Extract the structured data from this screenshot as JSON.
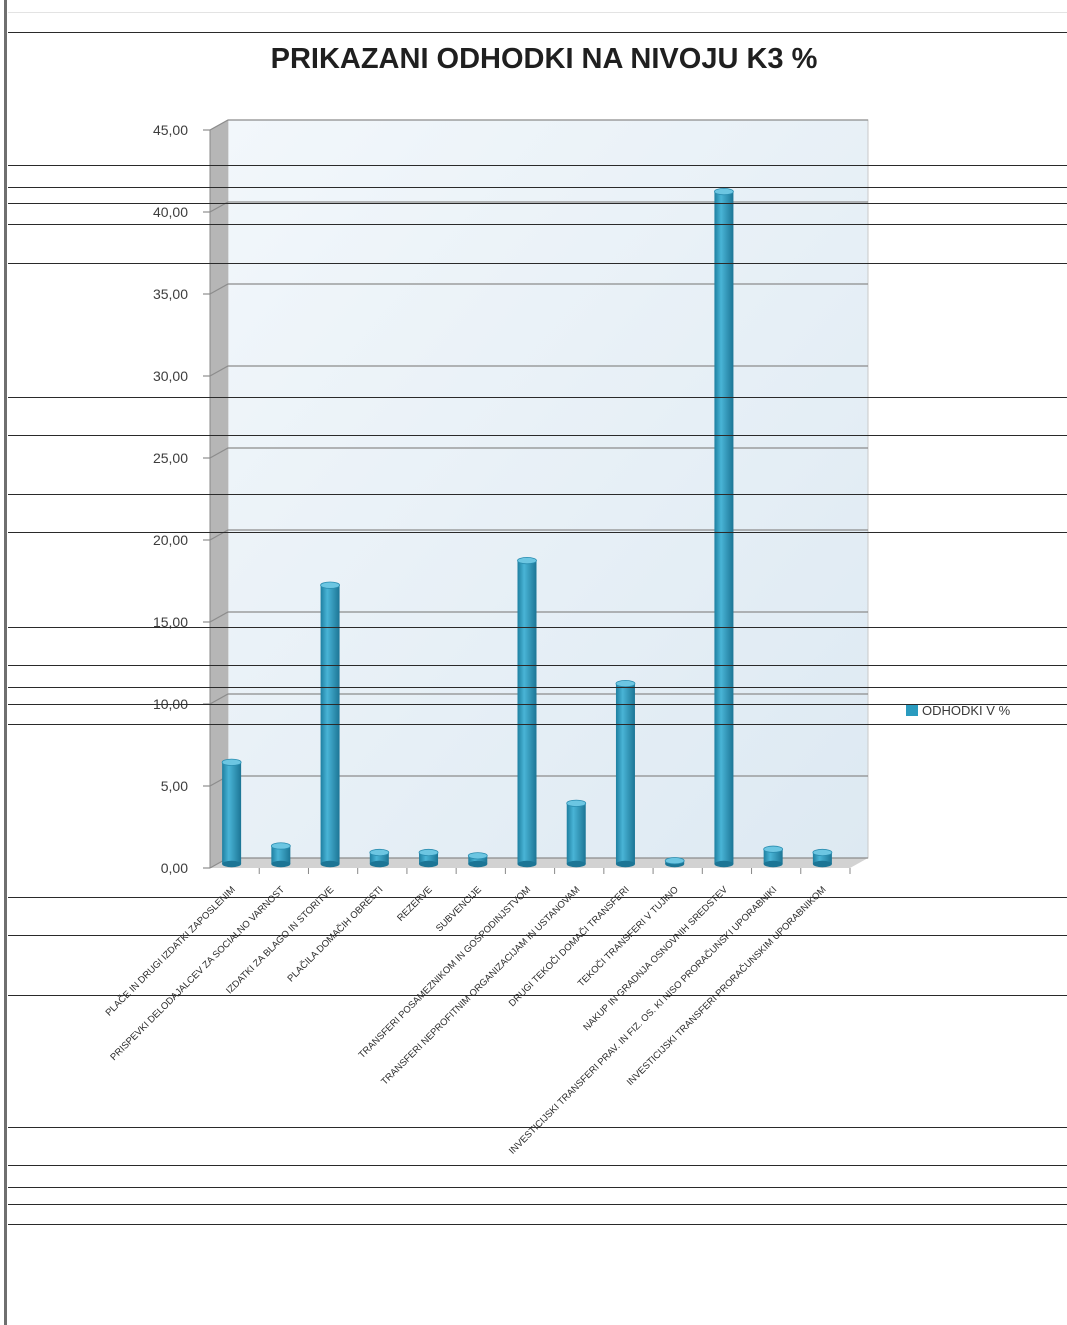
{
  "chart_data": {
    "type": "bar",
    "title": "PRIKAZANI ODHODKI NA NIVOJU K3 %",
    "xlabel": "",
    "ylabel": "",
    "ylim": [
      0,
      45
    ],
    "yticks": [
      "0,00",
      "5,00",
      "10,00",
      "15,00",
      "20,00",
      "25,00",
      "30,00",
      "35,00",
      "40,00",
      "45,00"
    ],
    "grid": true,
    "legend_position": "right",
    "categories": [
      "PLAČE IN DRUGI IZDATKI ZAPOSLENIM",
      "PRISPEVKI DELODAJALCEV ZA SOCIALNO VARNOST",
      "IZDATKI ZA BLAGO IN STORITVE",
      "PLAČILA DOMAČIH OBRESTI",
      "REZERVE",
      "SUBVENCIJE",
      "TRANSFERI POSAMEZNIKOM IN GOSPODINJSTVOM",
      "TRANSFERI NEPROFITNIM ORGANIZACIJAM IN USTANOVAM",
      "DRUGI TEKOČI DOMAČI TRANSFERI",
      "TEKOČI TRANSFERI V TUJINO",
      "NAKUP IN GRADNJA OSNOVNIH SREDSTEV",
      "INVESTICIJSKI TRANSFERI PRAV. IN FIZ. OS. KI NISO PRORAČUNSKI UPORABNIKI",
      "INVESTICIJSKI TRANSFERI PRORAČUNSKIM UPORABNIKOM"
    ],
    "series": [
      {
        "name": "ODHODKI V %",
        "color": "#2a9bbf",
        "values": [
          6.2,
          1.1,
          17.0,
          0.7,
          0.7,
          0.5,
          18.5,
          3.7,
          11.0,
          0.2,
          41.0,
          0.9,
          0.7
        ]
      }
    ]
  }
}
